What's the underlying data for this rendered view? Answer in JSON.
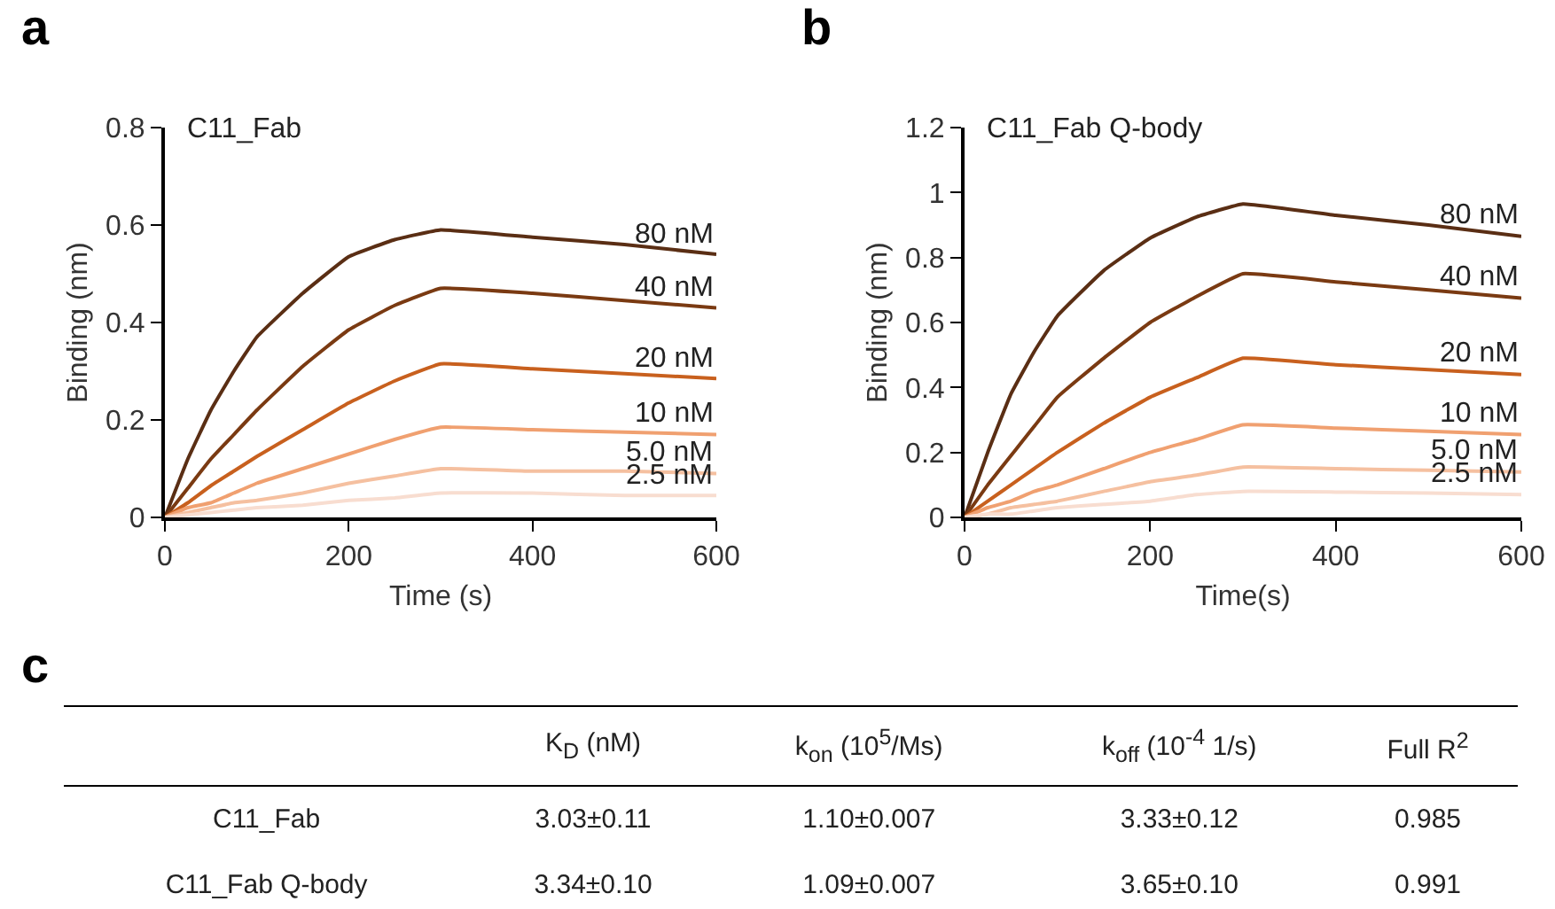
{
  "chart_data": [
    {
      "type": "line",
      "title": "C11_Fab",
      "xlabel": "Time (s)",
      "ylabel": "Binding (nm)",
      "annotations": [
        "a"
      ],
      "x": [
        0,
        25,
        50,
        75,
        100,
        150,
        200,
        250,
        300,
        400,
        500,
        600
      ],
      "xlim": [
        0,
        600
      ],
      "xticks": [
        0,
        200,
        400,
        600
      ],
      "ylim": [
        0,
        0.8
      ],
      "yticks": [
        0,
        0.2,
        0.4,
        0.6,
        0.8
      ],
      "grid": false,
      "legend": false,
      "marker": "none",
      "line_style": "solid",
      "series": [
        {
          "name": "80 nM",
          "color": "#5a2e14",
          "values": [
            0,
            0.12,
            0.22,
            0.3,
            0.37,
            0.46,
            0.535,
            0.57,
            0.59,
            0.575,
            0.56,
            0.54
          ]
        },
        {
          "name": "40 nM",
          "color": "#7a3a12",
          "values": [
            0,
            0.06,
            0.12,
            0.17,
            0.22,
            0.31,
            0.385,
            0.435,
            0.47,
            0.46,
            0.445,
            0.43
          ]
        },
        {
          "name": "20 nM",
          "color": "#c8601e",
          "values": [
            0,
            0.03,
            0.065,
            0.095,
            0.125,
            0.18,
            0.235,
            0.28,
            0.315,
            0.305,
            0.295,
            0.285
          ]
        },
        {
          "name": "10 nM",
          "color": "#f0a070",
          "values": [
            0,
            0.02,
            0.03,
            0.05,
            0.07,
            0.1,
            0.13,
            0.16,
            0.185,
            0.18,
            0.175,
            0.17
          ]
        },
        {
          "name": "5.0 nM",
          "color": "#f5c0a0",
          "values": [
            0,
            0.01,
            0.02,
            0.03,
            0.035,
            0.05,
            0.07,
            0.085,
            0.1,
            0.095,
            0.095,
            0.09
          ]
        },
        {
          "name": "2.5 nM",
          "color": "#f8ddd0",
          "values": [
            0,
            0.005,
            0.01,
            0.015,
            0.02,
            0.025,
            0.035,
            0.04,
            0.05,
            0.05,
            0.045,
            0.045
          ]
        }
      ]
    },
    {
      "type": "line",
      "title": "C11_Fab Q-body",
      "xlabel": "Time(s)",
      "ylabel": "Binding (nm)",
      "annotations": [
        "b"
      ],
      "x": [
        0,
        25,
        50,
        75,
        100,
        150,
        200,
        250,
        300,
        400,
        500,
        600
      ],
      "xlim": [
        0,
        600
      ],
      "xticks": [
        0,
        200,
        400,
        600
      ],
      "ylim": [
        0,
        1.2
      ],
      "yticks": [
        0,
        0.2,
        0.4,
        0.6,
        0.8,
        1,
        1.2
      ],
      "grid": false,
      "legend": false,
      "marker": "none",
      "line_style": "solid",
      "series": [
        {
          "name": "80 nM",
          "color": "#5a2e14",
          "values": [
            0,
            0.2,
            0.38,
            0.51,
            0.62,
            0.76,
            0.86,
            0.925,
            0.965,
            0.93,
            0.9,
            0.865
          ]
        },
        {
          "name": "40 nM",
          "color": "#7a3a12",
          "values": [
            0,
            0.1,
            0.19,
            0.28,
            0.37,
            0.49,
            0.6,
            0.68,
            0.75,
            0.725,
            0.7,
            0.675
          ]
        },
        {
          "name": "20 nM",
          "color": "#c8601e",
          "values": [
            0,
            0.05,
            0.1,
            0.15,
            0.2,
            0.29,
            0.37,
            0.43,
            0.49,
            0.47,
            0.455,
            0.44
          ]
        },
        {
          "name": "10 nM",
          "color": "#f0a070",
          "values": [
            0,
            0.03,
            0.05,
            0.08,
            0.1,
            0.15,
            0.2,
            0.24,
            0.285,
            0.275,
            0.265,
            0.255
          ]
        },
        {
          "name": "5.0 nM",
          "color": "#f5c0a0",
          "values": [
            0,
            0.01,
            0.03,
            0.04,
            0.05,
            0.08,
            0.11,
            0.13,
            0.155,
            0.15,
            0.145,
            0.14
          ]
        },
        {
          "name": "2.5 nM",
          "color": "#f8ddd0",
          "values": [
            0,
            0.01,
            0.01,
            0.02,
            0.03,
            0.04,
            0.05,
            0.07,
            0.08,
            0.078,
            0.075,
            0.07
          ]
        }
      ]
    },
    {
      "type": "other",
      "annotations": [
        "c"
      ],
      "categories": [
        "K$_{D}$ (nM)",
        "k$_{on}$ (10$^{5}$/Ms)",
        "k$_{off}$ (10$^{-4}$ 1/s)",
        "Full R$^{2}$"
      ],
      "y_categories": [
        "C11_Fab",
        "C11_Fab Q-body"
      ],
      "cell_labels": [
        [
          "3.03±0.11",
          "1.10±0.007",
          "3.33±0.12",
          "0.985"
        ],
        [
          "3.34±0.10",
          "1.09±0.007",
          "3.65±0.10",
          "0.991"
        ]
      ]
    }
  ]
}
